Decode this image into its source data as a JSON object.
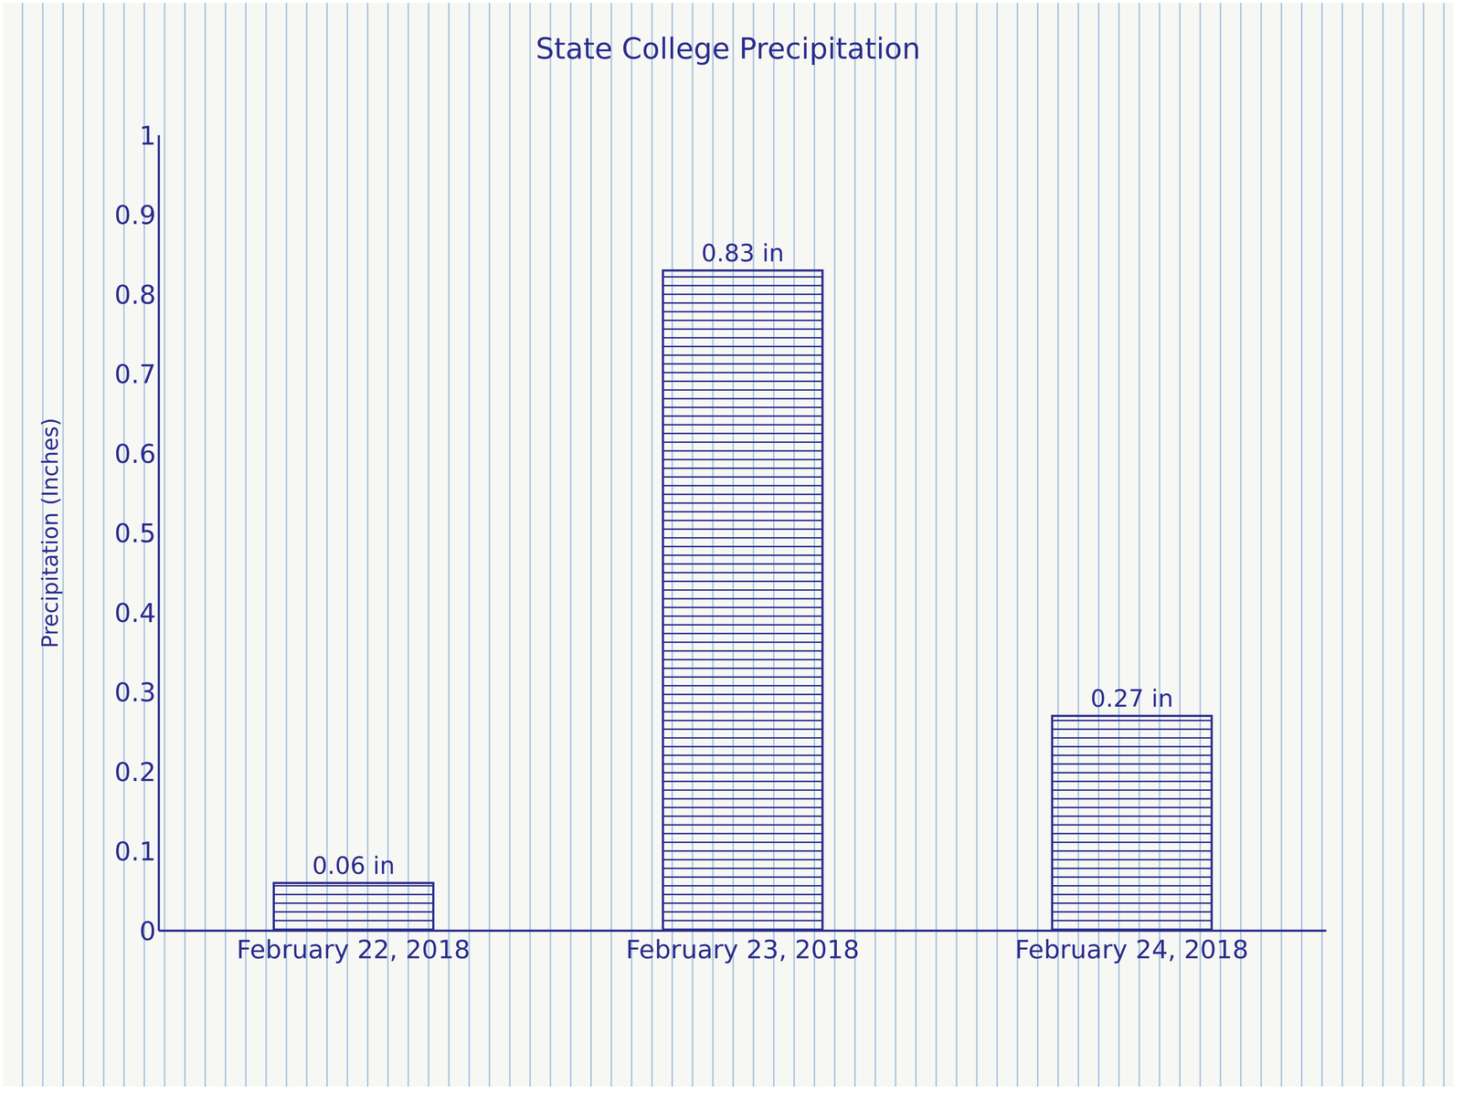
{
  "chart_data": {
    "type": "bar",
    "title": "State College Precipitation",
    "y_label": "Precipitation (Inches)",
    "categories": [
      "February 22, 2018",
      "February 23, 2018",
      "February 24, 2018"
    ],
    "values": [
      0.06,
      0.83,
      0.27
    ],
    "value_labels": [
      "0.06 in",
      "0.83 in",
      "0.27 in"
    ],
    "color": "#2b2d8c",
    "ylim": [
      0,
      1
    ],
    "yticks": [
      0,
      0.1,
      0.2,
      0.3,
      0.4,
      0.5,
      0.6,
      0.7,
      0.8,
      0.9,
      1
    ],
    "grid": false,
    "data_labels": true
  }
}
